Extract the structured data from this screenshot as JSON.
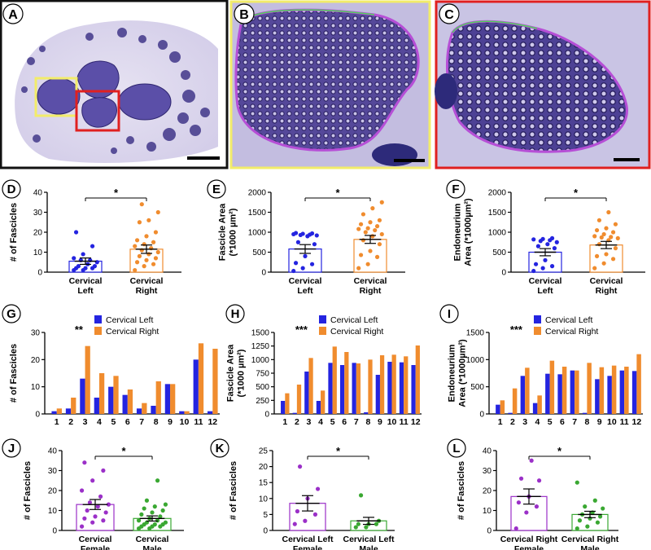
{
  "figure": {
    "micrographs": [
      {
        "letter": "A",
        "border_color": "#111111",
        "description_icon": "nerve-cross-section"
      },
      {
        "letter": "B",
        "border_color": "#f2ec6a",
        "description_icon": "fascicle-closeup"
      },
      {
        "letter": "C",
        "border_color": "#e02020",
        "description_icon": "fascicle-closeup"
      }
    ],
    "colors": {
      "left": "#2424e0",
      "right": "#f08c2e",
      "female": "#9b30c8",
      "male": "#3aa832",
      "stain_bg": "#c9c3e4",
      "stain_dark": "#4b3f8e",
      "sig": "#000000"
    }
  },
  "chart_data": [
    {
      "letter": "D",
      "type": "bar-dot",
      "ylabel": [
        "# of Fascicles"
      ],
      "ylim": [
        0,
        40
      ],
      "yticks": [
        0,
        10,
        20,
        30,
        40
      ],
      "categories": [
        [
          "Cervical",
          "Left"
        ],
        [
          "Cervical",
          "Right"
        ]
      ],
      "series": [
        {
          "group": "left",
          "mean": 5.5,
          "sem": 1.6,
          "points": [
            1,
            1,
            2,
            2,
            2,
            3,
            3,
            4,
            5,
            6,
            6,
            7,
            9,
            13,
            20
          ]
        },
        {
          "group": "right",
          "mean": 11.5,
          "sem": 2.1,
          "points": [
            1,
            3,
            4,
            5,
            6,
            7,
            8,
            9,
            10,
            11,
            12,
            13,
            14,
            15,
            16,
            18,
            20,
            25,
            26,
            30,
            34
          ]
        }
      ],
      "significance": "*"
    },
    {
      "letter": "E",
      "type": "bar-dot",
      "ylabel": [
        "Fascicle Area",
        "(*1000 µm²)"
      ],
      "ylim": [
        0,
        2000
      ],
      "yticks": [
        0,
        500,
        1000,
        1500,
        2000
      ],
      "categories": [
        [
          "Cervical",
          "Left"
        ],
        [
          "Cervical",
          "Right"
        ]
      ],
      "series": [
        {
          "group": "left",
          "mean": 580,
          "sem": 110,
          "points": [
            30,
            100,
            200,
            230,
            400,
            700,
            750,
            900,
            920,
            930,
            940,
            950,
            960,
            970,
            980
          ]
        },
        {
          "group": "right",
          "mean": 820,
          "sem": 100,
          "points": [
            100,
            200,
            380,
            430,
            530,
            700,
            800,
            900,
            950,
            1000,
            1050,
            1080,
            1100,
            1150,
            1200,
            1250,
            1300,
            1450,
            1600,
            1750
          ]
        }
      ],
      "significance": "*"
    },
    {
      "letter": "F",
      "type": "bar-dot",
      "ylabel": [
        "Endoneurium",
        "Area (*1000µm²)"
      ],
      "ylim": [
        0,
        2000
      ],
      "yticks": [
        0,
        500,
        1000,
        1500,
        2000
      ],
      "categories": [
        [
          "Cervical",
          "Left"
        ],
        [
          "Cervical",
          "Right"
        ]
      ],
      "series": [
        {
          "group": "left",
          "mean": 500,
          "sem": 90,
          "points": [
            30,
            100,
            150,
            200,
            300,
            600,
            650,
            700,
            750,
            780,
            800,
            820,
            830,
            850
          ]
        },
        {
          "group": "right",
          "mean": 680,
          "sem": 90,
          "points": [
            100,
            220,
            330,
            400,
            450,
            600,
            700,
            800,
            850,
            870,
            880,
            900,
            950,
            1000,
            1050,
            1100,
            1200,
            1300,
            1500
          ]
        }
      ],
      "significance": "*"
    },
    {
      "letter": "G",
      "type": "grouped-bar",
      "ylabel": [
        "# of Fascicles"
      ],
      "ylim": [
        0,
        30
      ],
      "yticks": [
        0,
        10,
        20,
        30
      ],
      "categories": [
        "1",
        "2",
        "3",
        "4",
        "5",
        "6",
        "7",
        "8",
        "9",
        "10",
        "11",
        "12"
      ],
      "series": [
        {
          "name": "Cervical Left",
          "group": "left",
          "values": [
            1,
            2,
            13,
            6,
            10,
            7,
            2,
            3,
            11,
            1,
            20,
            1
          ]
        },
        {
          "name": "Cervical Right",
          "group": "right",
          "values": [
            2,
            6,
            25,
            15,
            14,
            9,
            4,
            12,
            11,
            1,
            26,
            24
          ]
        }
      ],
      "significance": "**"
    },
    {
      "letter": "H",
      "type": "grouped-bar",
      "ylabel": [
        "Fascicle Area",
        "(*1000 µm²)"
      ],
      "ylim": [
        0,
        1500
      ],
      "yticks": [
        0,
        250,
        500,
        750,
        1000,
        1250,
        1500
      ],
      "categories": [
        "1",
        "2",
        "3",
        "4",
        "5",
        "6",
        "7",
        "8",
        "9",
        "10",
        "11",
        "12"
      ],
      "series": [
        {
          "name": "Cervical Left",
          "group": "left",
          "values": [
            240,
            20,
            780,
            240,
            940,
            900,
            940,
            30,
            720,
            960,
            950,
            900
          ]
        },
        {
          "name": "Cervical Right",
          "group": "right",
          "values": [
            380,
            540,
            1030,
            430,
            1240,
            1140,
            930,
            1000,
            1080,
            1090,
            1060,
            1260
          ]
        }
      ],
      "significance": "***"
    },
    {
      "letter": "I",
      "type": "grouped-bar",
      "ylabel": [
        "Endoneurium",
        "Area (*1000µm²)"
      ],
      "ylim": [
        0,
        1500
      ],
      "yticks": [
        0,
        500,
        1000,
        1500
      ],
      "categories": [
        "1",
        "2",
        "3",
        "4",
        "5",
        "6",
        "7",
        "8",
        "9",
        "10",
        "11",
        "12"
      ],
      "series": [
        {
          "name": "Cervical Left",
          "group": "left",
          "values": [
            170,
            20,
            700,
            200,
            740,
            730,
            800,
            20,
            640,
            700,
            800,
            790
          ]
        },
        {
          "name": "Cervical Right",
          "group": "right",
          "values": [
            250,
            470,
            850,
            340,
            980,
            870,
            800,
            940,
            860,
            890,
            870,
            1100
          ]
        }
      ],
      "significance": "***"
    },
    {
      "letter": "J",
      "type": "bar-dot",
      "ylabel": [
        "# of Fascicles"
      ],
      "ylim": [
        0,
        40
      ],
      "yticks": [
        0,
        10,
        20,
        30,
        40
      ],
      "categories": [
        [
          "Cervical",
          "Female"
        ],
        [
          "Cervical",
          "Male"
        ]
      ],
      "series": [
        {
          "group": "female",
          "mean": 13,
          "sem": 2.5,
          "points": [
            2,
            4,
            5,
            6,
            7,
            9,
            10,
            12,
            13,
            14,
            17,
            20,
            25,
            30,
            34
          ]
        },
        {
          "group": "male",
          "mean": 6,
          "sem": 1.3,
          "points": [
            1,
            1,
            2,
            2,
            2,
            3,
            3,
            3,
            4,
            4,
            5,
            5,
            6,
            7,
            8,
            9,
            10,
            11,
            12,
            13,
            15,
            25
          ]
        }
      ],
      "significance": "*"
    },
    {
      "letter": "K",
      "type": "bar-dot",
      "ylabel": [
        "# of Fascicles"
      ],
      "ylim": [
        0,
        25
      ],
      "yticks": [
        0,
        5,
        10,
        15,
        20,
        25
      ],
      "categories": [
        [
          "Cervical Left",
          "Female"
        ],
        [
          "Cervical Left",
          "Male"
        ]
      ],
      "series": [
        {
          "group": "female",
          "mean": 8.5,
          "sem": 2.4,
          "points": [
            2,
            3,
            5,
            6,
            10,
            13,
            20
          ]
        },
        {
          "group": "male",
          "mean": 3,
          "sem": 1.1,
          "points": [
            1,
            1,
            2,
            2,
            2,
            3,
            11
          ]
        }
      ],
      "significance": "*"
    },
    {
      "letter": "L",
      "type": "bar-dot",
      "ylabel": [
        "# of Fascicles"
      ],
      "ylim": [
        0,
        40
      ],
      "yticks": [
        0,
        10,
        20,
        30,
        40
      ],
      "categories": [
        [
          "Cervical Right",
          "Female"
        ],
        [
          "Cervical Right",
          "Male"
        ]
      ],
      "series": [
        {
          "group": "female",
          "mean": 17,
          "sem": 3.8,
          "points": [
            1,
            9,
            12,
            14,
            17,
            25,
            26,
            35
          ]
        },
        {
          "group": "male",
          "mean": 8,
          "sem": 1.6,
          "points": [
            1,
            2,
            4,
            5,
            6,
            7,
            8,
            9,
            11,
            12,
            15,
            24
          ]
        }
      ],
      "significance": "*"
    }
  ]
}
